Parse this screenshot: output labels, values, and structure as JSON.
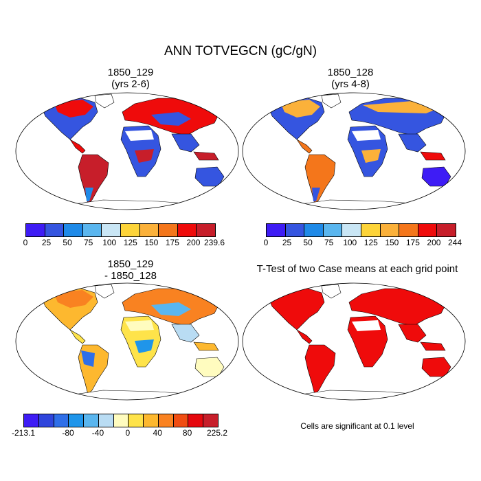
{
  "title": "ANN TOTVEGCN (gC/gN)",
  "panels": [
    {
      "title_line1": "1850_129",
      "title_line2": "(yrs 2-6)",
      "colors": [
        "#3e1cf5",
        "#3555e0",
        "#1f8ae8",
        "#5ab6ef",
        "#c9e6f5",
        "#fdd439",
        "#fbb13a",
        "#f4761b",
        "#ef0b0b",
        "#c71e2a"
      ],
      "labels": [
        "0",
        "25",
        "50",
        "75",
        "100",
        "125",
        "150",
        "175",
        "200",
        "239.6"
      ]
    },
    {
      "title_line1": "1850_128",
      "title_line2": "(yrs 4-8)",
      "colors": [
        "#3e1cf5",
        "#3555e0",
        "#1f8ae8",
        "#5ab6ef",
        "#c9e6f5",
        "#fdd439",
        "#fbb13a",
        "#f4761b",
        "#ef0b0b",
        "#c71e2a"
      ],
      "labels": [
        "0",
        "25",
        "50",
        "75",
        "100",
        "125",
        "150",
        "175",
        "200",
        "244"
      ]
    },
    {
      "title_line1": "1850_129",
      "title_line2": "- 1850_128",
      "colors": [
        "#3e1cf5",
        "#2f45dc",
        "#2f6fe8",
        "#1f95ea",
        "#5ab6ef",
        "#b9dcf3",
        "#fffcbf",
        "#fee34a",
        "#fdb82f",
        "#f98221",
        "#f04d12",
        "#e5080e",
        "#c71e2a"
      ],
      "labels": [
        "-213.1",
        "-80",
        "-40",
        "0",
        "40",
        "80",
        "225.2"
      ]
    },
    {
      "title_line1": "T-Test of two Case means at each grid point",
      "note": "Cells are significant at 0.1 level"
    }
  ]
}
